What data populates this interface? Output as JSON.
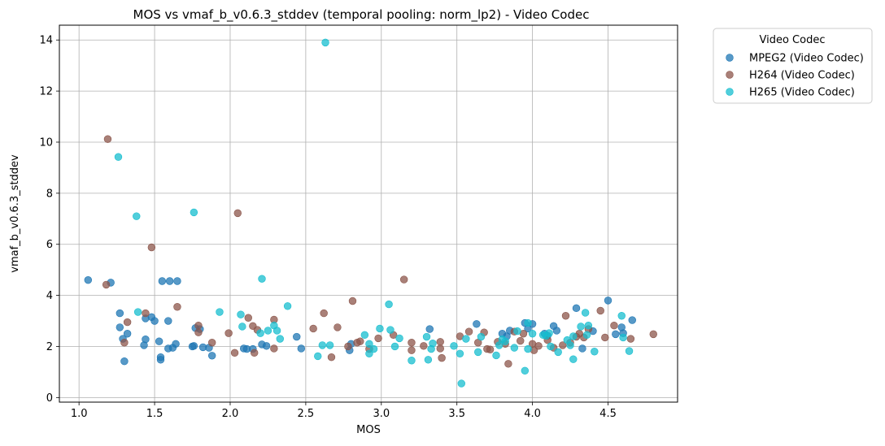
{
  "chart_data": {
    "type": "scatter",
    "title": "MOS vs vmaf_b_v0.6.3_stddev (temporal pooling: norm_lp2) - Video Codec",
    "xlabel": "MOS",
    "ylabel": "vmaf_b_v0.6.3_stddev",
    "xlim": [
      0.87,
      4.96
    ],
    "ylim": [
      -0.18,
      14.58
    ],
    "xticks": [
      "1.0",
      "1.5",
      "2.0",
      "2.5",
      "3.0",
      "3.5",
      "4.0",
      "4.5"
    ],
    "yticks": [
      "0",
      "2",
      "4",
      "6",
      "8",
      "10",
      "12",
      "14"
    ],
    "grid": true,
    "legend": {
      "title": "Video Codec",
      "placement": "outside-top-right"
    },
    "series": [
      {
        "name": "MPEG2 (Video Codec)",
        "color": "#1f77b4",
        "points": [
          [
            1.06,
            4.6
          ],
          [
            1.21,
            4.5
          ],
          [
            1.27,
            3.3
          ],
          [
            1.27,
            2.75
          ],
          [
            1.29,
            2.3
          ],
          [
            1.3,
            1.42
          ],
          [
            1.32,
            2.5
          ],
          [
            1.43,
            2.05
          ],
          [
            1.44,
            3.1
          ],
          [
            1.44,
            2.28
          ],
          [
            1.48,
            3.15
          ],
          [
            1.5,
            3.0
          ],
          [
            1.53,
            2.2
          ],
          [
            1.54,
            1.58
          ],
          [
            1.54,
            1.48
          ],
          [
            1.55,
            4.56
          ],
          [
            1.59,
            3.0
          ],
          [
            1.59,
            1.92
          ],
          [
            1.6,
            4.56
          ],
          [
            1.62,
            1.95
          ],
          [
            1.64,
            2.1
          ],
          [
            1.65,
            4.56
          ],
          [
            1.75,
            2.0
          ],
          [
            1.76,
            2.02
          ],
          [
            1.77,
            2.72
          ],
          [
            1.8,
            2.68
          ],
          [
            1.82,
            1.97
          ],
          [
            1.86,
            1.95
          ],
          [
            1.88,
            1.64
          ],
          [
            2.09,
            1.92
          ],
          [
            2.11,
            1.9
          ],
          [
            2.15,
            1.9
          ],
          [
            2.21,
            2.08
          ],
          [
            2.24,
            2.02
          ],
          [
            2.44,
            2.38
          ],
          [
            2.47,
            1.92
          ],
          [
            2.79,
            1.85
          ],
          [
            2.8,
            2.1
          ],
          [
            3.32,
            2.68
          ],
          [
            3.63,
            2.88
          ],
          [
            3.8,
            2.5
          ],
          [
            3.83,
            2.4
          ],
          [
            3.85,
            2.62
          ],
          [
            3.95,
            2.92
          ],
          [
            3.97,
            2.7
          ],
          [
            4.0,
            2.88
          ],
          [
            4.08,
            2.5
          ],
          [
            4.1,
            2.42
          ],
          [
            4.14,
            2.8
          ],
          [
            4.16,
            2.62
          ],
          [
            4.29,
            3.5
          ],
          [
            4.33,
            1.92
          ],
          [
            4.4,
            2.6
          ],
          [
            4.5,
            3.8
          ],
          [
            4.55,
            2.48
          ],
          [
            4.59,
            2.75
          ],
          [
            4.6,
            2.52
          ],
          [
            4.66,
            3.03
          ]
        ]
      },
      {
        "name": "H264 (Video Codec)",
        "color": "#8c564b",
        "points": [
          [
            1.18,
            4.42
          ],
          [
            1.19,
            10.12
          ],
          [
            1.3,
            2.15
          ],
          [
            1.32,
            2.95
          ],
          [
            1.44,
            3.3
          ],
          [
            1.48,
            5.88
          ],
          [
            1.65,
            3.55
          ],
          [
            1.79,
            2.82
          ],
          [
            1.79,
            2.55
          ],
          [
            1.88,
            2.15
          ],
          [
            1.99,
            2.52
          ],
          [
            2.03,
            1.75
          ],
          [
            2.05,
            7.22
          ],
          [
            2.12,
            3.12
          ],
          [
            2.15,
            2.8
          ],
          [
            2.16,
            1.75
          ],
          [
            2.18,
            2.65
          ],
          [
            2.29,
            3.05
          ],
          [
            2.29,
            1.92
          ],
          [
            2.55,
            2.7
          ],
          [
            2.62,
            3.3
          ],
          [
            2.67,
            1.58
          ],
          [
            2.71,
            2.75
          ],
          [
            2.78,
            2.0
          ],
          [
            2.81,
            3.78
          ],
          [
            2.84,
            2.15
          ],
          [
            2.86,
            2.2
          ],
          [
            2.92,
            1.9
          ],
          [
            2.98,
            2.32
          ],
          [
            3.08,
            2.45
          ],
          [
            3.15,
            4.62
          ],
          [
            3.2,
            2.15
          ],
          [
            3.2,
            1.85
          ],
          [
            3.28,
            2.02
          ],
          [
            3.39,
            2.18
          ],
          [
            3.39,
            1.92
          ],
          [
            3.4,
            1.55
          ],
          [
            3.52,
            2.4
          ],
          [
            3.58,
            2.58
          ],
          [
            3.64,
            2.15
          ],
          [
            3.68,
            2.55
          ],
          [
            3.7,
            1.9
          ],
          [
            3.72,
            1.88
          ],
          [
            3.77,
            2.18
          ],
          [
            3.82,
            2.1
          ],
          [
            3.84,
            1.32
          ],
          [
            3.88,
            2.58
          ],
          [
            3.92,
            2.22
          ],
          [
            3.94,
            2.5
          ],
          [
            4.0,
            2.1
          ],
          [
            4.01,
            1.85
          ],
          [
            4.04,
            2.02
          ],
          [
            4.1,
            2.25
          ],
          [
            4.14,
            1.95
          ],
          [
            4.2,
            2.05
          ],
          [
            4.22,
            3.2
          ],
          [
            4.25,
            2.15
          ],
          [
            4.29,
            2.38
          ],
          [
            4.31,
            2.5
          ],
          [
            4.34,
            2.35
          ],
          [
            4.37,
            2.68
          ],
          [
            4.45,
            3.4
          ],
          [
            4.48,
            2.35
          ],
          [
            4.54,
            2.82
          ],
          [
            4.65,
            2.3
          ],
          [
            4.8,
            2.48
          ]
        ]
      },
      {
        "name": "H265 (Video Codec)",
        "color": "#17becf",
        "points": [
          [
            1.26,
            9.42
          ],
          [
            1.38,
            7.1
          ],
          [
            1.39,
            3.35
          ],
          [
            1.76,
            7.25
          ],
          [
            1.93,
            3.35
          ],
          [
            2.07,
            3.25
          ],
          [
            2.08,
            2.78
          ],
          [
            2.2,
            2.52
          ],
          [
            2.21,
            4.65
          ],
          [
            2.25,
            2.62
          ],
          [
            2.29,
            2.82
          ],
          [
            2.31,
            2.62
          ],
          [
            2.33,
            2.3
          ],
          [
            2.38,
            3.58
          ],
          [
            2.58,
            1.62
          ],
          [
            2.61,
            2.05
          ],
          [
            2.63,
            13.9
          ],
          [
            2.66,
            2.05
          ],
          [
            2.89,
            2.45
          ],
          [
            2.92,
            1.72
          ],
          [
            2.92,
            2.1
          ],
          [
            2.95,
            1.9
          ],
          [
            2.99,
            2.7
          ],
          [
            3.05,
            3.65
          ],
          [
            3.06,
            2.65
          ],
          [
            3.09,
            2.0
          ],
          [
            3.12,
            2.32
          ],
          [
            3.2,
            1.45
          ],
          [
            3.3,
            2.38
          ],
          [
            3.31,
            1.48
          ],
          [
            3.33,
            1.9
          ],
          [
            3.34,
            2.12
          ],
          [
            3.48,
            2.02
          ],
          [
            3.52,
            1.72
          ],
          [
            3.53,
            0.55
          ],
          [
            3.56,
            2.3
          ],
          [
            3.64,
            1.78
          ],
          [
            3.66,
            2.38
          ],
          [
            3.76,
            1.65
          ],
          [
            3.78,
            2.05
          ],
          [
            3.8,
            2.28
          ],
          [
            3.82,
            2.2
          ],
          [
            3.88,
            1.95
          ],
          [
            3.9,
            2.6
          ],
          [
            3.95,
            1.05
          ],
          [
            3.97,
            2.92
          ],
          [
            3.97,
            1.9
          ],
          [
            4.0,
            2.5
          ],
          [
            4.07,
            2.45
          ],
          [
            4.09,
            2.42
          ],
          [
            4.11,
            2.52
          ],
          [
            4.12,
            2.0
          ],
          [
            4.17,
            1.78
          ],
          [
            4.23,
            2.25
          ],
          [
            4.25,
            2.05
          ],
          [
            4.27,
            1.5
          ],
          [
            4.27,
            2.4
          ],
          [
            4.32,
            2.78
          ],
          [
            4.35,
            3.32
          ],
          [
            4.36,
            2.45
          ],
          [
            4.37,
            2.82
          ],
          [
            4.41,
            1.8
          ],
          [
            4.59,
            3.2
          ],
          [
            4.6,
            2.35
          ],
          [
            4.64,
            1.82
          ]
        ]
      }
    ]
  }
}
